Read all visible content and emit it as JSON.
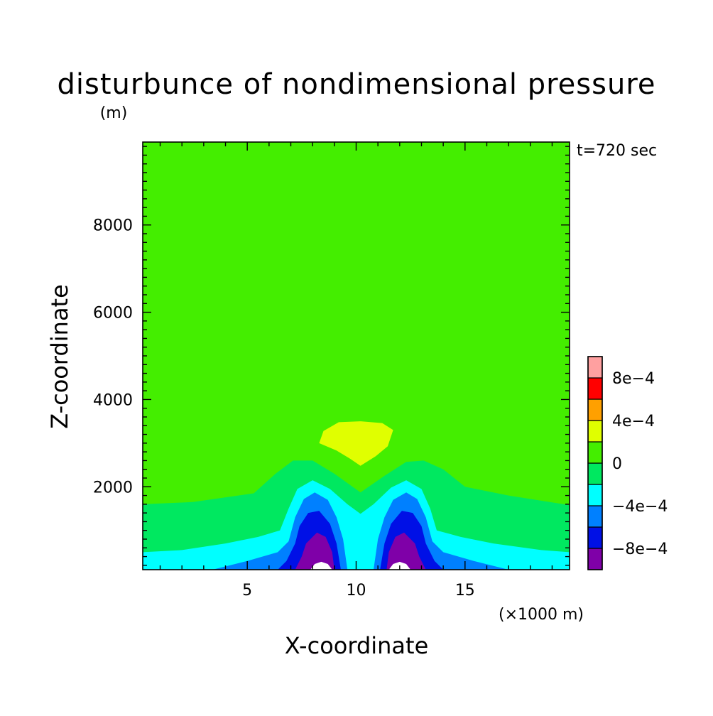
{
  "chart_data": {
    "type": "heatmap",
    "subtype": "filled-contour",
    "title": "disturbunce of nondimensional pressure",
    "units": "(m)",
    "time_label": "t=720 sec",
    "xlabel": "X-coordinate",
    "ylabel": "Z-coordinate",
    "x_scale_note": "(×1000 m)",
    "xlim": [
      0.2,
      19.8
    ],
    "ylim": [
      100,
      9900
    ],
    "x_ticks": [
      {
        "value": 5,
        "label": "5"
      },
      {
        "value": 10,
        "label": "10"
      },
      {
        "value": 15,
        "label": "15"
      }
    ],
    "y_ticks": [
      {
        "value": 2000,
        "label": "2000"
      },
      {
        "value": 4000,
        "label": "4000"
      },
      {
        "value": 6000,
        "label": "6000"
      },
      {
        "value": 8000,
        "label": "8000"
      }
    ],
    "levels": [
      -0.001,
      -0.0008,
      -0.0006,
      -0.0004,
      -0.0002,
      0,
      0.0002,
      0.0004,
      0.0006,
      0.0008,
      0.001
    ],
    "level_colors": [
      "#7f00a8",
      "#0010e6",
      "#0080ff",
      "#00ffff",
      "#00e860",
      "#44ee00",
      "#e0ff00",
      "#ffa000",
      "#ff0000",
      "#ffa0a0"
    ],
    "below_range_color": "#ffffff",
    "colorbar_labels": [
      {
        "value": 0.0008,
        "label": "8e−4"
      },
      {
        "value": 0.0004,
        "label": "4e−4"
      },
      {
        "value": 0,
        "label": "0"
      },
      {
        "value": -0.0004,
        "label": "−4e−4"
      },
      {
        "value": -0.0008,
        "label": "−8e−4"
      }
    ],
    "regions": [
      {
        "level": "0 to 2e-4",
        "color": "#44ee00",
        "path": [
          [
            0.2,
            9900
          ],
          [
            19.8,
            9900
          ],
          [
            19.8,
            100
          ],
          [
            0.2,
            100
          ]
        ]
      },
      {
        "level": "2e-4 to 4e-4",
        "color": "#e0ff00",
        "path": [
          [
            8.3,
            3000
          ],
          [
            8.5,
            3280
          ],
          [
            9.2,
            3480
          ],
          [
            10.2,
            3500
          ],
          [
            11.2,
            3460
          ],
          [
            11.7,
            3300
          ],
          [
            11.45,
            2930
          ],
          [
            10.9,
            2700
          ],
          [
            10.2,
            2480
          ],
          [
            9.7,
            2650
          ],
          [
            9.1,
            2830
          ]
        ]
      },
      {
        "level": "-2e-4 to 0",
        "color": "#00e860",
        "path": [
          [
            0.2,
            1600
          ],
          [
            2.5,
            1650
          ],
          [
            5.3,
            1850
          ],
          [
            6.3,
            2300
          ],
          [
            7.1,
            2600
          ],
          [
            8.0,
            2600
          ],
          [
            9.0,
            2300
          ],
          [
            10.2,
            1870
          ],
          [
            11.3,
            2250
          ],
          [
            12.3,
            2570
          ],
          [
            13.1,
            2600
          ],
          [
            14.0,
            2400
          ],
          [
            15.0,
            2000
          ],
          [
            17.0,
            1800
          ],
          [
            19.8,
            1580
          ],
          [
            19.8,
            100
          ],
          [
            0.2,
            100
          ]
        ]
      },
      {
        "level": "-4e-4 to -2e-4",
        "color": "#00ffff",
        "path": [
          [
            0.2,
            500
          ],
          [
            2.0,
            550
          ],
          [
            4.0,
            700
          ],
          [
            5.5,
            850
          ],
          [
            6.5,
            1000
          ],
          [
            6.9,
            1500
          ],
          [
            7.3,
            1950
          ],
          [
            8.0,
            2150
          ],
          [
            8.8,
            1950
          ],
          [
            9.6,
            1600
          ],
          [
            10.2,
            1380
          ],
          [
            10.8,
            1600
          ],
          [
            11.6,
            1980
          ],
          [
            12.3,
            2150
          ],
          [
            13.0,
            1950
          ],
          [
            13.4,
            1500
          ],
          [
            13.7,
            1000
          ],
          [
            14.8,
            850
          ],
          [
            16.3,
            700
          ],
          [
            18.5,
            550
          ],
          [
            19.8,
            500
          ],
          [
            19.8,
            100
          ],
          [
            0.2,
            100
          ]
        ]
      },
      {
        "level": "-6e-4 to -4e-4",
        "color": "#0080ff",
        "path": [
          [
            3.4,
            100
          ],
          [
            5.0,
            300
          ],
          [
            6.4,
            500
          ],
          [
            6.9,
            750
          ],
          [
            7.2,
            1300
          ],
          [
            7.6,
            1720
          ],
          [
            8.1,
            1870
          ],
          [
            8.7,
            1700
          ],
          [
            9.1,
            1300
          ],
          [
            9.4,
            800
          ],
          [
            9.6,
            100
          ]
        ]
      },
      {
        "level": "-6e-4 to -4e-4",
        "color": "#0080ff",
        "path": [
          [
            10.8,
            100
          ],
          [
            11.0,
            800
          ],
          [
            11.3,
            1300
          ],
          [
            11.7,
            1700
          ],
          [
            12.3,
            1870
          ],
          [
            12.8,
            1720
          ],
          [
            13.2,
            1300
          ],
          [
            13.5,
            750
          ],
          [
            14.0,
            500
          ],
          [
            15.4,
            300
          ],
          [
            17.0,
            100
          ]
        ]
      },
      {
        "level": "-8e-4 to -6e-4",
        "color": "#0010e6",
        "path": [
          [
            6.4,
            100
          ],
          [
            6.8,
            300
          ],
          [
            7.2,
            700
          ],
          [
            7.4,
            1100
          ],
          [
            7.8,
            1400
          ],
          [
            8.3,
            1450
          ],
          [
            8.8,
            1150
          ],
          [
            9.1,
            700
          ],
          [
            9.3,
            100
          ]
        ]
      },
      {
        "level": "-8e-4 to -6e-4",
        "color": "#0010e6",
        "path": [
          [
            11.1,
            100
          ],
          [
            11.3,
            700
          ],
          [
            11.6,
            1150
          ],
          [
            12.1,
            1450
          ],
          [
            12.6,
            1400
          ],
          [
            13.0,
            1100
          ],
          [
            13.2,
            700
          ],
          [
            13.6,
            300
          ],
          [
            14.0,
            100
          ]
        ]
      },
      {
        "level": "-1e-3 to -8e-4",
        "color": "#7f00a8",
        "path": [
          [
            7.2,
            100
          ],
          [
            7.5,
            400
          ],
          [
            7.7,
            700
          ],
          [
            8.2,
            950
          ],
          [
            8.6,
            850
          ],
          [
            8.9,
            500
          ],
          [
            9.0,
            100
          ]
        ]
      },
      {
        "level": "-1e-3 to -8e-4",
        "color": "#7f00a8",
        "path": [
          [
            11.4,
            100
          ],
          [
            11.5,
            500
          ],
          [
            11.8,
            850
          ],
          [
            12.2,
            950
          ],
          [
            12.7,
            700
          ],
          [
            12.9,
            400
          ],
          [
            13.2,
            100
          ]
        ]
      },
      {
        "level": "below -1e-3",
        "color": "#ffffff",
        "path": [
          [
            7.9,
            100
          ],
          [
            8.1,
            230
          ],
          [
            8.4,
            280
          ],
          [
            8.7,
            230
          ],
          [
            8.9,
            100
          ]
        ]
      },
      {
        "level": "below -1e-3",
        "color": "#ffffff",
        "path": [
          [
            11.5,
            100
          ],
          [
            11.7,
            230
          ],
          [
            12.0,
            280
          ],
          [
            12.3,
            230
          ],
          [
            12.5,
            100
          ]
        ]
      }
    ]
  }
}
